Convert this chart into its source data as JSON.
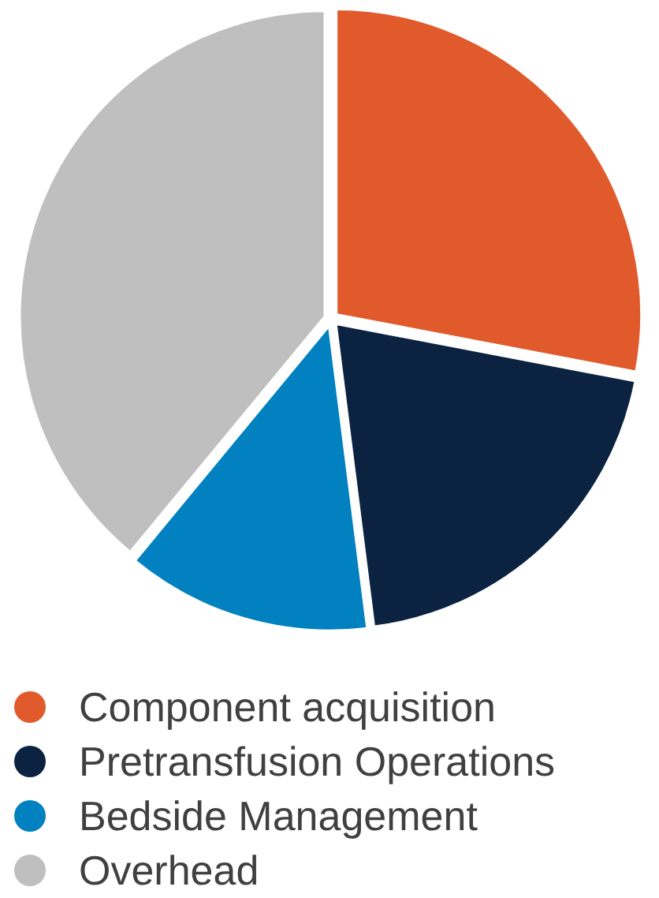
{
  "chart_data": {
    "type": "pie",
    "categories": [
      "Component acquisition",
      "Pretransfusion Operations",
      "Bedside Management",
      "Overhead"
    ],
    "values": [
      28,
      20,
      13,
      39
    ],
    "colors": [
      "#e05a2b",
      "#0b2340",
      "#0281c0",
      "#bfbfbf"
    ],
    "legend": "bottom"
  }
}
